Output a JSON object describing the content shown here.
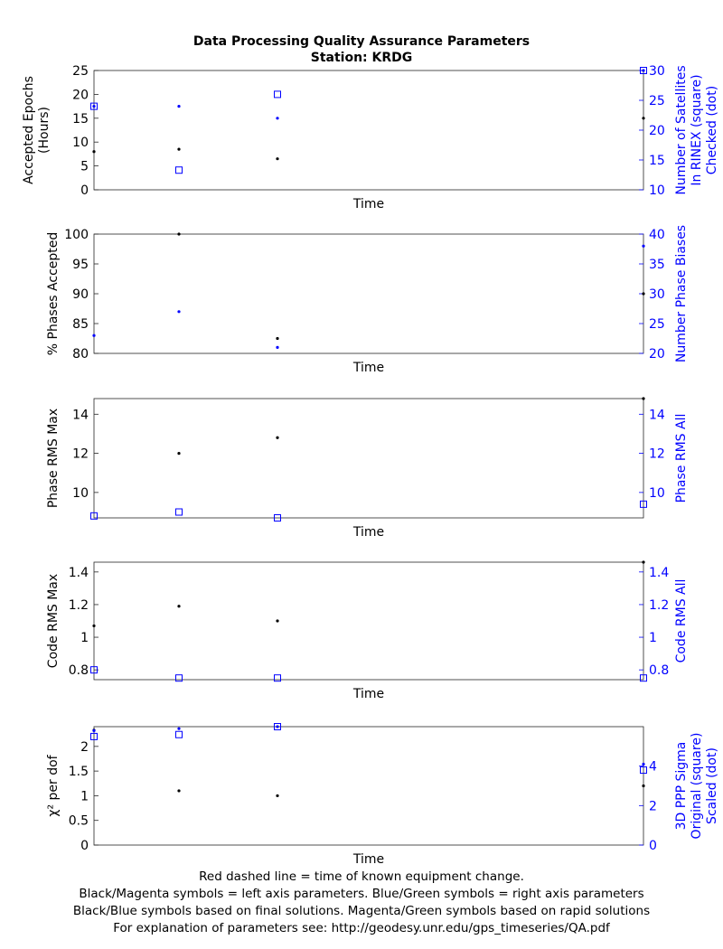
{
  "header": {
    "title": "Data Processing Quality Assurance Parameters",
    "subtitle": "Station: KRDG"
  },
  "footer": {
    "line1": "Red dashed line = time of known equipment change.",
    "line2": "Black/Magenta symbols = left axis parameters. Blue/Green symbols = right axis parameters",
    "line3": "Black/Blue symbols based on final solutions.  Magenta/Green symbols based on rapid solutions",
    "line4": "For explanation of parameters see: http://geodesy.unr.edu/gps_timeseries/QA.pdf"
  },
  "colors": {
    "left": "#000000",
    "right": "#0000ff",
    "axis": "#262626"
  },
  "chart_data": [
    {
      "type": "scatter",
      "xlabel": "Time",
      "ylabel_left": [
        "Accepted Epochs",
        "(Hours)"
      ],
      "ylabel_right": [
        "Number of Satellites",
        "In RINEX (square)",
        "Checked (dot)"
      ],
      "ylim_left": [
        0,
        25
      ],
      "ylim_right": [
        10,
        30
      ],
      "yticks_left": [
        0,
        5,
        10,
        15,
        20,
        25
      ],
      "yticks_right": [
        10,
        15,
        20,
        25,
        30
      ],
      "series": [
        {
          "axis": "left",
          "marker": "dot",
          "x": [
            0,
            1,
            2,
            3
          ],
          "values": [
            8,
            8.5,
            6.5,
            15
          ]
        },
        {
          "axis": "right",
          "marker": "square",
          "x": [
            0,
            1,
            2,
            3
          ],
          "values": [
            24,
            13.3,
            26,
            30
          ]
        },
        {
          "axis": "right",
          "marker": "dot",
          "x": [
            0,
            1,
            2,
            3
          ],
          "values": [
            24,
            24,
            22,
            30
          ]
        }
      ]
    },
    {
      "type": "scatter",
      "xlabel": "Time",
      "ylabel_left": [
        "% Phases Accepted"
      ],
      "ylabel_right": [
        "Number Phase Biases"
      ],
      "ylim_left": [
        80,
        100
      ],
      "ylim_right": [
        20,
        40
      ],
      "yticks_left": [
        80,
        85,
        90,
        95,
        100
      ],
      "yticks_right": [
        20,
        25,
        30,
        35,
        40
      ],
      "series": [
        {
          "axis": "left",
          "marker": "dot",
          "x": [
            1,
            2,
            3
          ],
          "values": [
            100,
            82.5,
            90
          ]
        },
        {
          "axis": "right",
          "marker": "dot",
          "x": [
            0,
            1,
            2,
            3
          ],
          "values": [
            23,
            27,
            21,
            38
          ]
        }
      ]
    },
    {
      "type": "scatter",
      "xlabel": "Time",
      "ylabel_left": [
        "Phase RMS Max"
      ],
      "ylabel_right": [
        "Phase RMS All"
      ],
      "ylim_left": [
        8.7,
        14.8
      ],
      "ylim_right": [
        8.7,
        14.8
      ],
      "yticks_left": [
        10,
        12,
        14
      ],
      "yticks_right": [
        10,
        12,
        14
      ],
      "series": [
        {
          "axis": "left",
          "marker": "dot",
          "x": [
            1,
            2,
            3
          ],
          "values": [
            12,
            12.8,
            14.8
          ]
        },
        {
          "axis": "right",
          "marker": "square",
          "x": [
            0,
            1,
            2,
            3
          ],
          "values": [
            8.8,
            9,
            8.7,
            9.4
          ]
        }
      ]
    },
    {
      "type": "scatter",
      "xlabel": "Time",
      "ylabel_left": [
        "Code RMS Max"
      ],
      "ylabel_right": [
        "Code RMS All"
      ],
      "ylim_left": [
        0.74,
        1.46
      ],
      "ylim_right": [
        0.74,
        1.46
      ],
      "yticks_left": [
        0.8,
        1,
        1.2,
        1.4
      ],
      "yticks_right": [
        0.8,
        1,
        1.2,
        1.4
      ],
      "series": [
        {
          "axis": "left",
          "marker": "dot",
          "x": [
            0,
            1,
            2,
            3
          ],
          "values": [
            1.07,
            1.19,
            1.1,
            1.46
          ]
        },
        {
          "axis": "right",
          "marker": "square",
          "x": [
            0,
            1,
            2,
            3
          ],
          "values": [
            0.8,
            0.75,
            0.75,
            0.75
          ]
        }
      ]
    },
    {
      "type": "scatter",
      "xlabel": "Time",
      "ylabel_left": [
        "χ² per dof"
      ],
      "ylabel_right": [
        "3D PPP Sigma",
        "Original (square)",
        "Scaled (dot)"
      ],
      "ylim_left": [
        0,
        2.4
      ],
      "ylim_right": [
        0,
        6
      ],
      "yticks_left": [
        0,
        0.5,
        1,
        1.5,
        2
      ],
      "yticks_right": [
        0,
        2,
        4
      ],
      "series": [
        {
          "axis": "left",
          "marker": "dot",
          "x": [
            0,
            1,
            2,
            3
          ],
          "values": [
            2.33,
            1.1,
            1,
            1.2
          ]
        },
        {
          "axis": "right",
          "marker": "square",
          "x": [
            0,
            1,
            2,
            3
          ],
          "values": [
            5.5,
            5.6,
            6,
            3.8
          ]
        },
        {
          "axis": "right",
          "marker": "dot",
          "x": [
            0,
            1,
            2,
            3
          ],
          "values": [
            5.8,
            5.9,
            6,
            4.1
          ]
        }
      ]
    }
  ]
}
